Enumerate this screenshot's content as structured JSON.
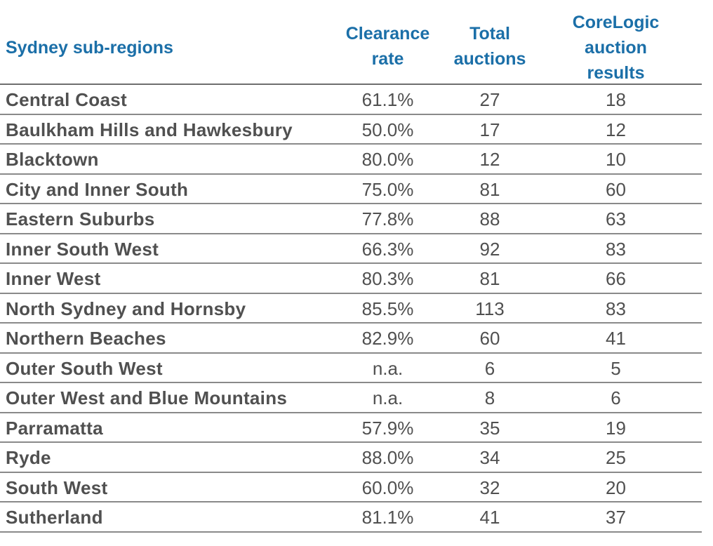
{
  "chart_data": {
    "type": "table",
    "title": "",
    "columns": [
      "Sydney sub-regions",
      "Clearance rate",
      "Total auctions",
      "CoreLogic auction results"
    ],
    "header": {
      "region": "Sydney sub-regions",
      "clearance_line1": "Clearance",
      "clearance_line2": "rate",
      "total_line1": "Total",
      "total_line2": "auctions",
      "core_line1": "CoreLogic",
      "core_line2": "auction",
      "core_line3": "results"
    },
    "rows": [
      {
        "region": "Central Coast",
        "clearance": "61.1%",
        "total": "27",
        "results": "18"
      },
      {
        "region": "Baulkham Hills and Hawkesbury",
        "clearance": "50.0%",
        "total": "17",
        "results": "12"
      },
      {
        "region": "Blacktown",
        "clearance": "80.0%",
        "total": "12",
        "results": "10"
      },
      {
        "region": "City and Inner South",
        "clearance": "75.0%",
        "total": "81",
        "results": "60"
      },
      {
        "region": "Eastern Suburbs",
        "clearance": "77.8%",
        "total": "88",
        "results": "63"
      },
      {
        "region": "Inner South West",
        "clearance": "66.3%",
        "total": "92",
        "results": "83"
      },
      {
        "region": "Inner West",
        "clearance": "80.3%",
        "total": "81",
        "results": "66"
      },
      {
        "region": "North Sydney and Hornsby",
        "clearance": "85.5%",
        "total": "113",
        "results": "83"
      },
      {
        "region": "Northern Beaches",
        "clearance": "82.9%",
        "total": "60",
        "results": "41"
      },
      {
        "region": "Outer South West",
        "clearance": "n.a.",
        "total": "6",
        "results": "5"
      },
      {
        "region": "Outer West and Blue Mountains",
        "clearance": "n.a.",
        "total": "8",
        "results": "6"
      },
      {
        "region": "Parramatta",
        "clearance": "57.9%",
        "total": "35",
        "results": "19"
      },
      {
        "region": "Ryde",
        "clearance": "88.0%",
        "total": "34",
        "results": "25"
      },
      {
        "region": "South West",
        "clearance": "60.0%",
        "total": "32",
        "results": "20"
      },
      {
        "region": "Sutherland",
        "clearance": "81.1%",
        "total": "41",
        "results": "37"
      }
    ]
  },
  "colors": {
    "header_text": "#1b6fa8",
    "body_text": "#505050",
    "rule": "#8a8a8a"
  }
}
